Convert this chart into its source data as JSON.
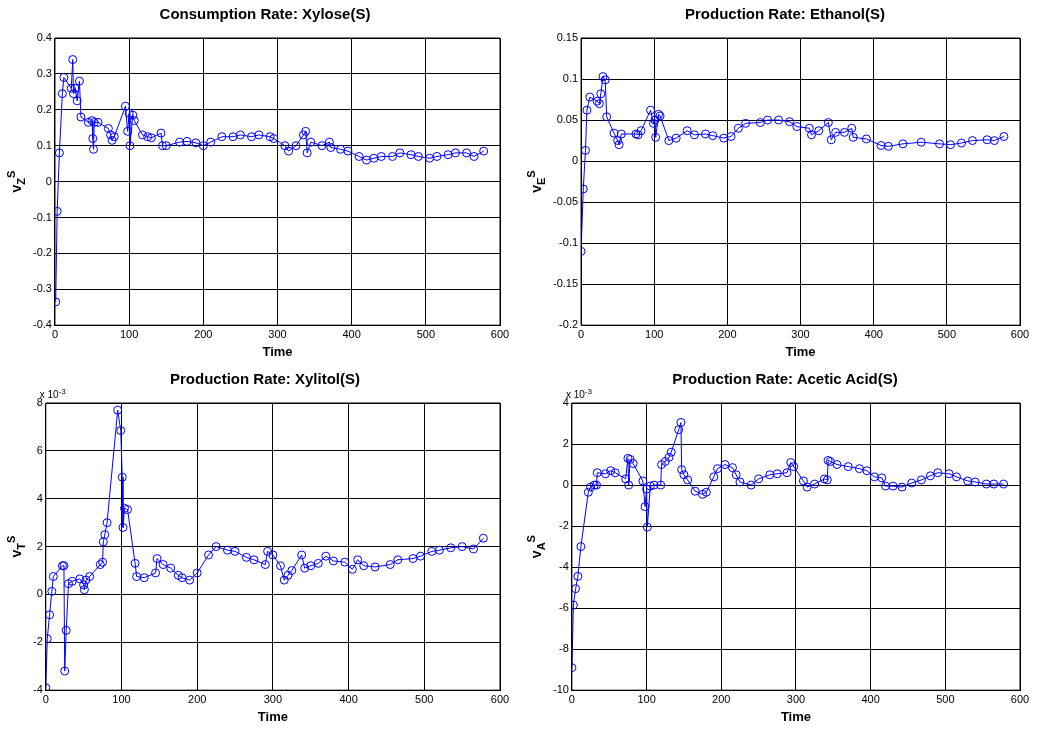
{
  "chart_data": [
    {
      "type": "line",
      "title": "Consumption Rate: Xylose(S)",
      "xlabel": "Time",
      "ylabel": "v$_{Z}$$^{S}$",
      "grid": true,
      "marker": "circle",
      "line_style": "solid",
      "xlim": [
        0,
        600
      ],
      "xticks": [
        0,
        100,
        200,
        300,
        400,
        500,
        600
      ],
      "ylim": [
        -0.4,
        0.4
      ],
      "yticks": [
        -0.4,
        -0.3,
        -0.2,
        -0.1,
        0,
        0.1,
        0.2,
        0.3,
        0.4
      ],
      "x": [
        1,
        3,
        6,
        10,
        12,
        22,
        24,
        25,
        27,
        30,
        33,
        35,
        45,
        50,
        51,
        52,
        53,
        58,
        72,
        75,
        77,
        80,
        95,
        98,
        100,
        101,
        105,
        107,
        118,
        125,
        130,
        143,
        145,
        150,
        168,
        178,
        190,
        200,
        210,
        225,
        240,
        250,
        265,
        275,
        290,
        295,
        310,
        315,
        325,
        335,
        338,
        340,
        345,
        360,
        370,
        372,
        385,
        395,
        410,
        420,
        430,
        440,
        455,
        465,
        480,
        490,
        505,
        515,
        530,
        540,
        555,
        565,
        578
      ],
      "series": [
        {
          "color": "#0000ff",
          "values": [
            -0.335,
            -0.083,
            0.08,
            0.245,
            0.29,
            0.26,
            0.34,
            0.245,
            0.26,
            0.225,
            0.28,
            0.18,
            0.165,
            0.17,
            0.12,
            0.09,
            0.165,
            0.165,
            0.148,
            0.13,
            0.115,
            0.125,
            0.21,
            0.14,
            0.19,
            0.1,
            0.185,
            0.17,
            0.13,
            0.125,
            0.122,
            0.135,
            0.1,
            0.1,
            0.11,
            0.112,
            0.108,
            0.1,
            0.11,
            0.125,
            0.125,
            0.13,
            0.125,
            0.13,
            0.125,
            0.12,
            0.1,
            0.085,
            0.1,
            0.13,
            0.14,
            0.08,
            0.11,
            0.1,
            0.11,
            0.095,
            0.09,
            0.085,
            0.07,
            0.06,
            0.065,
            0.07,
            0.07,
            0.08,
            0.075,
            0.07,
            0.065,
            0.07,
            0.075,
            0.08,
            0.08,
            0.07,
            0.085
          ]
        }
      ]
    },
    {
      "type": "line",
      "title": "Production Rate: Ethanol(S)",
      "xlabel": "Time",
      "ylabel": "v$_{E}$$^{S}$",
      "grid": true,
      "marker": "circle",
      "line_style": "solid",
      "xlim": [
        0,
        600
      ],
      "xticks": [
        0,
        100,
        200,
        300,
        400,
        500,
        600
      ],
      "ylim": [
        -0.2,
        0.15
      ],
      "yticks": [
        -0.2,
        -0.15,
        -0.1,
        -0.05,
        0,
        0.05,
        0.1,
        0.15
      ],
      "x": [
        0,
        3,
        6,
        8,
        12,
        22,
        25,
        27,
        30,
        33,
        35,
        45,
        50,
        52,
        55,
        75,
        78,
        82,
        95,
        99,
        101,
        102,
        106,
        108,
        120,
        130,
        145,
        155,
        170,
        180,
        195,
        205,
        215,
        225,
        245,
        255,
        270,
        285,
        295,
        312,
        315,
        325,
        338,
        342,
        348,
        360,
        370,
        372,
        390,
        410,
        420,
        440,
        465,
        490,
        505,
        520,
        535,
        555,
        565,
        578
      ],
      "series": [
        {
          "color": "#0000ff",
          "values": [
            -0.11,
            -0.034,
            0.013,
            0.062,
            0.078,
            0.073,
            0.07,
            0.082,
            0.103,
            0.099,
            0.054,
            0.034,
            0.025,
            0.02,
            0.033,
            0.033,
            0.032,
            0.037,
            0.062,
            0.046,
            0.05,
            0.029,
            0.057,
            0.055,
            0.025,
            0.028,
            0.037,
            0.032,
            0.033,
            0.031,
            0.028,
            0.03,
            0.04,
            0.046,
            0.047,
            0.05,
            0.05,
            0.048,
            0.042,
            0.04,
            0.032,
            0.037,
            0.047,
            0.026,
            0.035,
            0.035,
            0.04,
            0.029,
            0.027,
            0.019,
            0.018,
            0.021,
            0.023,
            0.021,
            0.02,
            0.022,
            0.025,
            0.026,
            0.025,
            0.03
          ]
        }
      ]
    },
    {
      "type": "line",
      "title": "Production Rate: Xylitol(S)",
      "xlabel": "Time",
      "ylabel": "v$_{T}$$^{S}$",
      "grid": true,
      "marker": "circle",
      "line_style": "solid",
      "annotations": [
        "x 10$^{-3}$"
      ],
      "xlim": [
        0,
        600
      ],
      "xticks": [
        0,
        100,
        200,
        300,
        400,
        500,
        600
      ],
      "ylim": [
        -4,
        8
      ],
      "yticks": [
        -4,
        -2,
        0,
        2,
        4,
        6,
        8
      ],
      "x": [
        0,
        2,
        5,
        8,
        10,
        22,
        24,
        25,
        27,
        30,
        35,
        45,
        50,
        51,
        53,
        58,
        72,
        75,
        76,
        78,
        81,
        95,
        99,
        101,
        102,
        104,
        108,
        118,
        120,
        130,
        145,
        147,
        155,
        165,
        175,
        180,
        190,
        200,
        215,
        225,
        240,
        250,
        265,
        275,
        290,
        293,
        300,
        310,
        315,
        320,
        325,
        338,
        342,
        350,
        360,
        370,
        380,
        395,
        405,
        412,
        420,
        435,
        455,
        465,
        485,
        495,
        510,
        520,
        535,
        550,
        565,
        578
      ],
      "series": [
        {
          "color": "#0000ff",
          "values": [
            -3.9,
            -1.85,
            -0.85,
            0.13,
            0.75,
            1.2,
            1.2,
            -3.2,
            -1.5,
            0.45,
            0.55,
            0.65,
            0.4,
            0.2,
            0.6,
            0.75,
            1.25,
            1.35,
            2.2,
            2.5,
            3.0,
            7.7,
            6.85,
            4.9,
            2.8,
            3.6,
            3.55,
            1.3,
            0.75,
            0.7,
            0.9,
            1.5,
            1.25,
            1.1,
            0.8,
            0.7,
            0.6,
            0.9,
            1.65,
            2.0,
            1.85,
            1.8,
            1.55,
            1.45,
            1.25,
            1.8,
            1.65,
            1.2,
            0.6,
            0.8,
            1.0,
            1.65,
            1.1,
            1.2,
            1.3,
            1.6,
            1.4,
            1.35,
            1.05,
            1.45,
            1.2,
            1.15,
            1.25,
            1.45,
            1.5,
            1.6,
            1.8,
            1.85,
            1.95,
            2.0,
            1.9,
            2.35
          ]
        }
      ]
    },
    {
      "type": "line",
      "title": "Production Rate: Acetic Acid(S)",
      "xlabel": "Time",
      "ylabel": "v$_{A}$$^{S}$",
      "grid": true,
      "marker": "circle",
      "line_style": "solid",
      "annotations": [
        "x 10$^{-3}$"
      ],
      "xlim": [
        0,
        600
      ],
      "xticks": [
        0,
        100,
        200,
        300,
        400,
        500,
        600
      ],
      "ylim": [
        -10,
        4
      ],
      "yticks": [
        -10,
        -8,
        -6,
        -4,
        -2,
        0,
        2,
        4
      ],
      "x": [
        0,
        2,
        5,
        8,
        12,
        22,
        25,
        30,
        33,
        34,
        45,
        52,
        58,
        72,
        75,
        76,
        78,
        82,
        95,
        98,
        100,
        101,
        105,
        110,
        119,
        120,
        125,
        130,
        133,
        143,
        146,
        147,
        150,
        155,
        165,
        175,
        180,
        190,
        195,
        205,
        215,
        220,
        225,
        240,
        250,
        265,
        275,
        288,
        293,
        297,
        310,
        315,
        325,
        338,
        342,
        343,
        346,
        355,
        370,
        385,
        395,
        405,
        415,
        420,
        430,
        442,
        455,
        468,
        480,
        490,
        505,
        515,
        530,
        540,
        555,
        565,
        578
      ],
      "series": [
        {
          "color": "#0000ff",
          "values": [
            -8.9,
            -5.85,
            -5.05,
            -4.45,
            -3.0,
            -0.35,
            -0.1,
            0,
            0,
            0.6,
            0.55,
            0.7,
            0.6,
            0.3,
            1.3,
            0.0,
            1.25,
            1.05,
            0.2,
            -1.05,
            -0.2,
            -2.05,
            -0.05,
            0.0,
            0.0,
            1.0,
            1.15,
            1.35,
            1.6,
            2.7,
            3.05,
            0.75,
            0.5,
            0.25,
            -0.3,
            -0.45,
            -0.35,
            0.4,
            0.8,
            1.0,
            0.85,
            0.5,
            0.15,
            0.0,
            0.3,
            0.5,
            0.55,
            0.6,
            1.1,
            0.9,
            0.2,
            -0.1,
            0.05,
            0.3,
            0.25,
            1.2,
            1.15,
            1.0,
            0.9,
            0.8,
            0.7,
            0.4,
            0.35,
            -0.05,
            -0.05,
            -0.1,
            0.1,
            0.25,
            0.45,
            0.6,
            0.55,
            0.4,
            0.2,
            0.15,
            0.05,
            0.05,
            0.05
          ]
        }
      ]
    }
  ]
}
